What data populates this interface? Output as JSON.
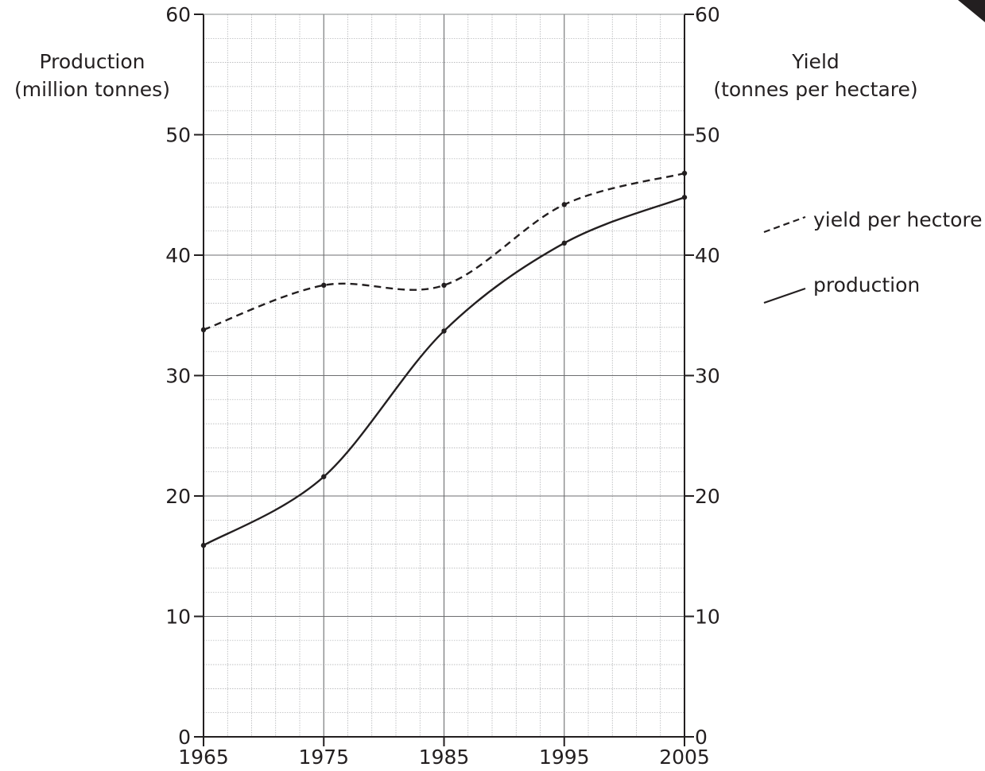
{
  "chart_data": {
    "type": "line",
    "x": [
      1965,
      1975,
      1985,
      1995,
      2005
    ],
    "xlim": [
      1965,
      2005
    ],
    "x_ticks": [
      "1965",
      "1975",
      "1985",
      "1995",
      "2005"
    ],
    "left_axis": {
      "label_line1": "Production",
      "label_line2": "(million tonnes)",
      "ylim": [
        0,
        60
      ],
      "ticks": [
        "0",
        "10",
        "20",
        "30",
        "40",
        "50",
        "60"
      ]
    },
    "right_axis": {
      "label_line1": "Yield",
      "label_line2": "(tonnes per hectare)",
      "ylim": [
        0,
        60
      ],
      "ticks": [
        "0",
        "10",
        "20",
        "30",
        "40",
        "50",
        "60"
      ]
    },
    "grid": true,
    "legend_position": "right",
    "series": [
      {
        "name": "yield per hectore",
        "style": "dashed",
        "color": "#231f20",
        "points": [
          [
            1965,
            33.8
          ],
          [
            1975,
            37.5
          ],
          [
            1985,
            37.5
          ],
          [
            1995,
            44.2
          ],
          [
            2005,
            46.8
          ]
        ]
      },
      {
        "name": "production",
        "style": "solid",
        "color": "#231f20",
        "points": [
          [
            1965,
            15.9
          ],
          [
            1975,
            21.6
          ],
          [
            1985,
            33.7
          ],
          [
            1995,
            41.0
          ],
          [
            2005,
            44.8
          ]
        ]
      }
    ]
  }
}
